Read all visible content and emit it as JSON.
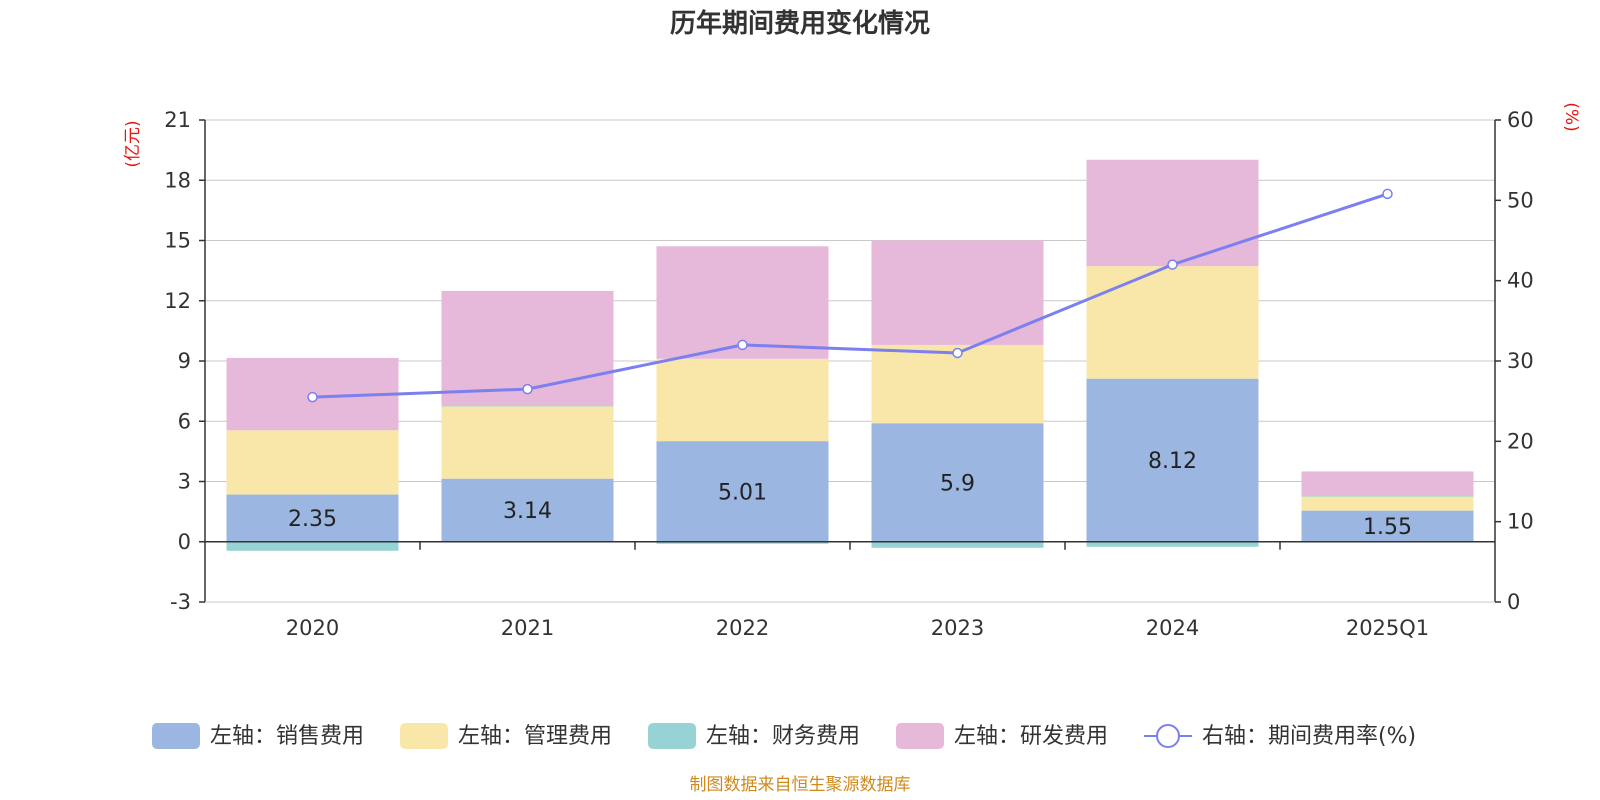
{
  "chart_data": {
    "type": "bar",
    "title": "历年期间费用变化情况",
    "categories": [
      "2020",
      "2021",
      "2022",
      "2023",
      "2024",
      "2025Q1"
    ],
    "left_axis": {
      "unit": "(亿元)",
      "ylim": [
        -3,
        21
      ],
      "ticks": [
        "-3",
        "0",
        "3",
        "6",
        "9",
        "12",
        "15",
        "18",
        "21"
      ]
    },
    "right_axis": {
      "unit": "(%)",
      "ylim": [
        0,
        60
      ],
      "ticks": [
        "0",
        "10",
        "20",
        "30",
        "40",
        "50",
        "60"
      ]
    },
    "series": [
      {
        "name": "左轴：销售费用",
        "axis": "left",
        "color": "#9bb7e1",
        "values": [
          2.35,
          3.14,
          5.01,
          5.9,
          8.12,
          1.55
        ],
        "labels": [
          "2.35",
          "3.14",
          "5.01",
          "5.9",
          "8.12",
          "1.55"
        ]
      },
      {
        "name": "左轴：管理费用",
        "axis": "left",
        "color": "#f8e7a8",
        "values": [
          3.2,
          3.6,
          4.1,
          3.9,
          5.6,
          0.7
        ]
      },
      {
        "name": "左轴：财务费用",
        "axis": "left",
        "color": "#97d3d4",
        "values": [
          -0.45,
          0.05,
          -0.1,
          -0.3,
          -0.25,
          0.05
        ]
      },
      {
        "name": "左轴：研发费用",
        "axis": "left",
        "color": "#e6b8d9",
        "values": [
          3.6,
          5.7,
          5.6,
          5.2,
          5.3,
          1.2
        ]
      }
    ],
    "line": {
      "name": "右轴：期间费用率(%)",
      "axis": "right",
      "color": "#7b7ff0",
      "values": [
        25.5,
        26.5,
        32.0,
        31.0,
        42.0,
        50.8
      ]
    },
    "source": "制图数据来自恒生聚源数据库"
  }
}
